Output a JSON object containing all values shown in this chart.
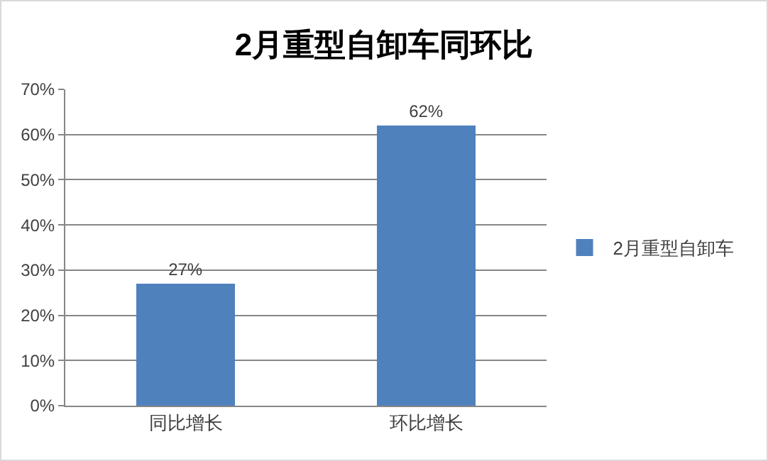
{
  "chart_data": {
    "type": "bar",
    "title": "2月重型自卸车同环比",
    "categories": [
      "同比增长",
      "环比增长"
    ],
    "series": [
      {
        "name": "2月重型自卸车",
        "color": "#4f81bd",
        "values": [
          27,
          62
        ],
        "value_labels": [
          "27%",
          "62%"
        ]
      }
    ],
    "ylim": [
      0,
      70
    ],
    "yticks": [
      {
        "value": 0,
        "label": "0%"
      },
      {
        "value": 10,
        "label": "10%"
      },
      {
        "value": 20,
        "label": "20%"
      },
      {
        "value": 30,
        "label": "30%"
      },
      {
        "value": 40,
        "label": "40%"
      },
      {
        "value": 50,
        "label": "50%"
      },
      {
        "value": 60,
        "label": "60%"
      },
      {
        "value": 70,
        "label": "70%"
      }
    ],
    "grid": "y",
    "legend": "right"
  }
}
